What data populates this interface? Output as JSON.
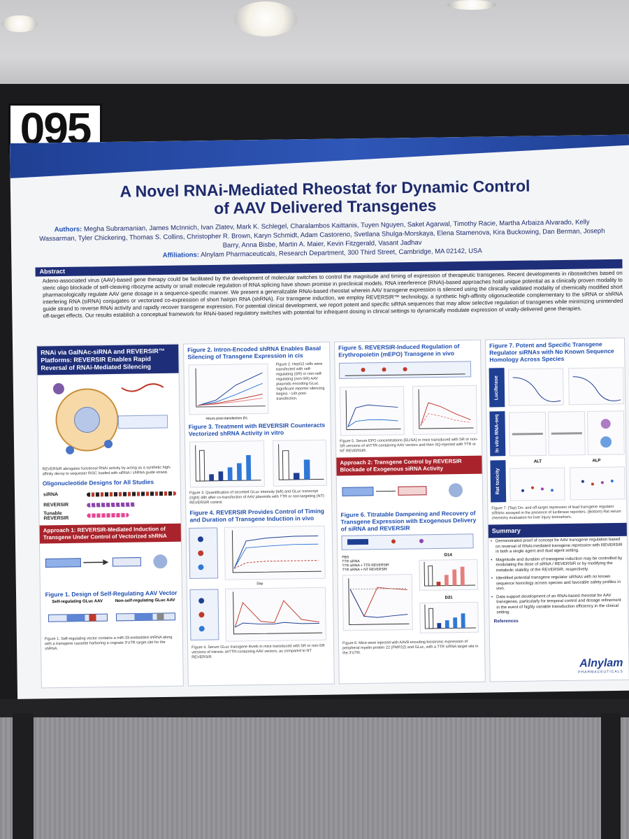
{
  "board": {
    "number": "095"
  },
  "poster": {
    "title_line1": "A Novel RNAi-Mediated Rheostat for Dynamic Control",
    "title_line2": "of AAV Delivered Transgenes",
    "authors_label": "Authors:",
    "authors": "Megha Subramanian, James McInnich, Ivan Zlatev, Mark K. Schlegel, Charalambos Kaittanis, Tuyen Nguyen, Saket Agarwal, Timothy Racie, Martha Arbaiza Alvarado, Kelly Wassarman, Tyler Chickering, Thomas S. Collins, Christopher R. Brown, Karyn Schmidt, Adam Castoreno, Svetlana Shulga-Morskaya, Elena Stamenova, Kira Buckowing, Dan Berman, Joseph Barry, Anna Bisbe, Martin A. Maier, Kevin Fitzgerald, Vasant Jadhav",
    "affiliations_label": "Affiliations:",
    "affiliations": "Alnylam Pharmaceuticals, Research Department, 300 Third Street, Cambridge, MA 02142, USA",
    "abstract_heading": "Abstract",
    "abstract": "Adeno-associated virus (AAV)-based gene therapy could be facilitated by the development of molecular switches to control the magnitude and timing of expression of therapeutic transgenes. Recent developments in riboswitches based on steric oligo blockade of self-cleaving ribozyme activity or small molecule regulation of RNA splicing have shown promise in preclinical models. RNA interference (RNAi)-based approaches hold unique potential as a clinically proven modality to pharmacologically regulate AAV gene dosage in a sequence-specific manner. We present a generalizable RNAi-based rheostat wherein AAV transgene expression is silenced using the clinically validated modality of chemically modified short interfering RNA (siRNA) conjugates or vectorized co-expression of short hairpin RNA (shRNA). For transgene induction, we employ REVERSIR™ technology, a synthetic high-affinity oligonucleotide complementary to the siRNA or shRNA guide strand to reverse RNAi activity and rapidly recover transgene expression. For potential clinical development, we report potent and specific siRNA sequences that may allow selective regulation of transgenes while minimizing unintended off-target effects. Our results establish a conceptual framework for RNAi-based regulatory switches with potential for infrequent dosing in clinical settings to dynamically modulate expression of virally-delivered gene therapies.",
    "col1": {
      "heading": "RNAi via GalNAc-siRNA and REVERSIR™ Platforms: REVERSIR Enables Rapid Reversal of RNAi-Mediated Silencing",
      "diagram_caption": "REVERSIR abrogates functional RNAi activity by acting as a synthetic high-affinity decoy to sequester RISC loaded with siRNA / shRNA guide strand.",
      "oligo_heading": "Oligonucleotide Designs for All Studies",
      "oligo_rows": [
        "siRNA",
        "REVERSIR",
        "Tunable REVERSIR"
      ],
      "approach1": "Approach 1: REVERSIR-Mediated Induction of Transgene Under Control of Vectorized shRNA",
      "fig1_title": "Figure 1. Design of Self-Regulating AAV Vector",
      "fig1_left": "Self-regulating GLuc AAV",
      "fig1_right": "Non-self-regulating GLuc AAV",
      "fig1_caption": "Figure 1. Self-regulating vector contains a miR-33-embedded shRNA along with a transgene cassette harboring a cognate 3'UTR target site for the shRNA."
    },
    "col2": {
      "fig2_title": "Figure 2. Intron-Encoded shRNA Enables Basal Silencing of Transgene Expression in cis",
      "fig2_caption": "Figure 2. HepG2 cells were transfected with self-regulating (SR) or non-self-regulating (non-SR) AAV plasmids encoding GLuc. Significant reporter silencing begins ~14h post-transfection.",
      "fig2_xlabel": "Hours post-transfection (h)",
      "fig3_title": "Figure 3. Treatment with REVERSIR Counteracts Vectorized shRNA Activity in vitro",
      "fig3_caption": "Figure 3. Quantification of secreted GLuc intensity (left) and GLuc transcript (right) 48h after co-transfection of AAV plasmids with TTR or non-targeting (NT) REVERSIR control.",
      "fig4_title": "Figure 4. REVERSIR Provides Control of Timing and Duration of Transgene Induction in vivo",
      "fig4_xlabel": "Day",
      "fig4_caption": "Figure 4. Serum GLuc transgene levels in mice transduced with SR or non-SR versions of intronic shTTR-containing AAV vectors, as compared to NT REVERSIR."
    },
    "col3": {
      "fig5_title": "Figure 5. REVERSIR-Induced Regulation of Erythropoietin (mEPO) Transgene in vivo",
      "fig5_caption": "Figure 5. Serum EPO concentrations (ELISA) in mice transduced with SR or non-SR versions of shTTR-containing AAV vectors and then SQ-injected with TTR or NT REVERSIR.",
      "approach2": "Approach 2: Transgene Control by REVERSIR Blockade of Exogenous siRNA Activity",
      "fig6_title": "Figure 6. Titratable Dampening and Recovery of Transgene Expression with Exogenous Delivery of siRNA and REVERSIR",
      "fig6_legend": [
        "PBS",
        "TTR siRNA",
        "TTR siRNA + TTR REVERSIR",
        "TTR siRNA + NT REVERSIR"
      ],
      "fig6_labels": [
        "D14",
        "D21"
      ],
      "fig6_caption": "Figure 6. Mice were injected with AAV8 encoding bicistronic expression of peripheral myelin protein 22 (PMP22) and GLuc, with a TTR siRNA target site in the 3'UTR."
    },
    "col4": {
      "fig7_title": "Figure 7. Potent and Specific Transgene Regulator siRNAs with No Known Sequence Homology Across Species",
      "row_labels": [
        "Luciferase reporter",
        "In vitro RNA-seq",
        "Rat toxicity"
      ],
      "tox_labels": [
        "ALT",
        "ALP"
      ],
      "fig7_caption": "Figure 7. (Top) On- and off-target repression of lead transgene regulator siRNAs assayed in the presence of luciferase reporters. (Bottom) Rat serum chemistry evaluation for liver injury biomarkers.",
      "summary_heading": "Summary",
      "summary": [
        "Demonstrated proof of concept for AAV transgene regulation based on reversal of RNAi-mediated transgene repression with REVERSIR in both a single agent and dual agent setting.",
        "Magnitude and duration of transgene induction may be controlled by modulating the dose of siRNA / REVERSIR or by modifying the metabolic stability of the REVERSIR, respectively.",
        "Identified potential transgene regulator siRNAs with no known sequence homology across species and favorable safety profiles in vivo.",
        "Data support development of an RNAi-based rheostat for AAV transgenes, particularly for temporal control and dosage refinement in the event of highly variable transduction efficiency in the clinical setting."
      ],
      "references_heading": "References",
      "logo": "Alnylam",
      "logo_sub": "PHARMACEUTICALS"
    }
  },
  "colors": {
    "navy": "#1f2e78",
    "blue": "#1f4fb0",
    "red": "#a8232b"
  }
}
